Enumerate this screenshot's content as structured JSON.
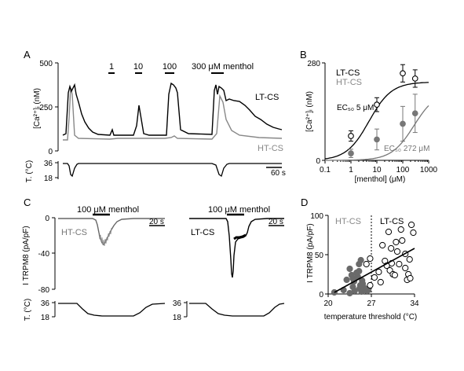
{
  "panels": {
    "A": {
      "letter": "A",
      "y_unit": "[Ca²⁺]ᵢ (nM)",
      "y_ticks": [
        "500",
        "250",
        "0"
      ],
      "menthol_labels": [
        "1",
        "10",
        "100",
        "300 μM menthol"
      ],
      "temp_label": "T. (°C)",
      "temp_ticks": [
        "36",
        "18"
      ],
      "scale_bar": "60 s",
      "series": [
        "LT-CS",
        "HT-CS"
      ]
    },
    "B": {
      "letter": "B",
      "ylabel": "[Ca²⁺]ᵢ (nM)",
      "xlabel": "[menthol] (μM)",
      "y_ticks": [
        "280",
        "0"
      ],
      "x_ticks": [
        "0.1",
        "1",
        "10",
        "100",
        "1000"
      ],
      "legend": [
        "LT-CS",
        "HT-CS"
      ],
      "ec50_lt": "EC₅₀ 5 μM",
      "ec50_ht": "EC₅₀ 272 μM"
    },
    "C": {
      "letter": "C",
      "menthol_label": "100 μM menthol",
      "y_ticks": [
        "0",
        "-40",
        "-80"
      ],
      "ylabel": "I TRPM8 (pA/pF)",
      "series": [
        "HT-CS",
        "LT-CS"
      ],
      "scale_bar": "20 s",
      "temp_label": "T. (°C)",
      "temp_ticks": [
        "36",
        "18"
      ]
    },
    "D": {
      "letter": "D",
      "ylabel": "I TRPM8 (pA/pF)",
      "xlabel": "temperature threshold (°C)",
      "y_ticks": [
        "100",
        "50",
        "0"
      ],
      "x_ticks": [
        "20",
        "27",
        "34"
      ],
      "groups": [
        "HT-CS",
        "LT-CS"
      ]
    }
  },
  "chart_data": [
    {
      "panel": "B",
      "type": "scatter",
      "xscale": "log",
      "xlim": [
        0.1,
        1000
      ],
      "ylim": [
        0,
        280
      ],
      "series": [
        {
          "name": "LT-CS",
          "fit": "sigmoid",
          "ec50": 5,
          "x": [
            1,
            10,
            100,
            300
          ],
          "y": [
            70,
            160,
            250,
            235
          ],
          "err": [
            15,
            20,
            25,
            25
          ],
          "color": "#000000",
          "filled": false
        },
        {
          "name": "HT-CS",
          "fit": "sigmoid",
          "ec50": 272,
          "x": [
            1,
            10,
            100,
            300
          ],
          "y": [
            20,
            60,
            105,
            135
          ],
          "err": [
            12,
            30,
            50,
            55
          ],
          "color": "#777777",
          "filled": true
        }
      ]
    },
    {
      "panel": "D",
      "type": "scatter",
      "xlim": [
        20,
        34
      ],
      "ylim": [
        0,
        100
      ],
      "threshold": 27,
      "regression": {
        "x": [
          21,
          34
        ],
        "y": [
          2,
          58
        ]
      },
      "series": [
        {
          "name": "HT-CS",
          "filled": true,
          "color": "#6a6a6a",
          "points": [
            [
              21,
              2
            ],
            [
              22.5,
              5
            ],
            [
              23,
              18
            ],
            [
              23.5,
              1
            ],
            [
              23.5,
              32
            ],
            [
              23.8,
              24
            ],
            [
              24,
              20
            ],
            [
              24,
              9
            ],
            [
              24.2,
              16
            ],
            [
              24.3,
              4
            ],
            [
              24.6,
              27
            ],
            [
              24.8,
              22
            ],
            [
              25,
              38
            ],
            [
              25,
              29
            ],
            [
              25.1,
              7
            ],
            [
              25.2,
              11
            ],
            [
              25.3,
              43
            ],
            [
              25.4,
              3
            ],
            [
              25.5,
              17
            ],
            [
              25.6,
              13
            ],
            [
              25.7,
              5
            ],
            [
              25.8,
              8
            ],
            [
              26,
              5
            ],
            [
              26.2,
              6
            ],
            [
              26.3,
              4
            ],
            [
              26.5,
              5
            ]
          ]
        },
        {
          "name": "LT-CS",
          "filled": false,
          "color": "#000000",
          "points": [
            [
              26.2,
              38
            ],
            [
              26.8,
              11
            ],
            [
              26.8,
              45
            ],
            [
              27.5,
              21
            ],
            [
              28.2,
              28
            ],
            [
              28.5,
              15
            ],
            [
              28.8,
              62
            ],
            [
              29.2,
              42
            ],
            [
              29.5,
              36
            ],
            [
              29.8,
              79
            ],
            [
              30,
              30
            ],
            [
              30.3,
              39
            ],
            [
              30.5,
              25
            ],
            [
              30.8,
              24
            ],
            [
              31,
              66
            ],
            [
              31.2,
              54
            ],
            [
              31.5,
              38
            ],
            [
              31.8,
              82
            ],
            [
              32,
              68
            ],
            [
              32.5,
              33
            ],
            [
              32.5,
              51
            ],
            [
              32.8,
              18
            ],
            [
              33,
              25
            ],
            [
              33.2,
              44
            ],
            [
              33.5,
              88
            ],
            [
              33.8,
              78
            ],
            [
              33.3,
              20
            ],
            [
              30.2,
              58
            ]
          ]
        }
      ]
    }
  ]
}
